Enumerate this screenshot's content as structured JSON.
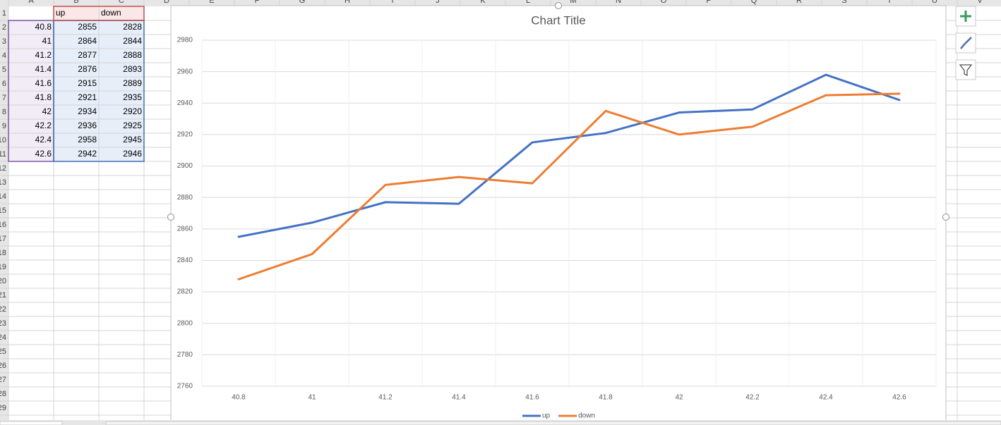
{
  "spreadsheet": {
    "columns": [
      "A",
      "B",
      "C",
      "D",
      "E",
      "F",
      "G",
      "H",
      "I",
      "J",
      "K",
      "L",
      "M",
      "N",
      "O",
      "P",
      "Q",
      "R",
      "S",
      "T",
      "U",
      "V"
    ],
    "row_numbers": [
      1,
      2,
      3,
      4,
      5,
      6,
      7,
      8,
      9,
      10,
      11,
      12,
      13,
      14,
      15,
      16,
      17,
      18,
      19,
      20,
      21,
      22,
      23,
      24,
      25,
      26,
      27,
      28,
      29
    ],
    "header": [
      "up",
      "down"
    ],
    "table": [
      [
        40.8,
        2855,
        2828
      ],
      [
        41,
        2864,
        2844
      ],
      [
        41.2,
        2877,
        2888
      ],
      [
        41.4,
        2876,
        2893
      ],
      [
        41.6,
        2915,
        2889
      ],
      [
        41.8,
        2921,
        2935
      ],
      [
        42,
        2934,
        2920
      ],
      [
        42.2,
        2936,
        2925
      ],
      [
        42.4,
        2958,
        2945
      ],
      [
        42.6,
        2942,
        2946
      ]
    ]
  },
  "chart_data": {
    "type": "line",
    "title": "Chart Title",
    "categories": [
      "40.8",
      "41",
      "41.2",
      "41.4",
      "41.6",
      "41.8",
      "42",
      "42.2",
      "42.4",
      "42.6"
    ],
    "series": [
      {
        "name": "up",
        "color": "#4472c4",
        "values": [
          2855,
          2864,
          2877,
          2876,
          2915,
          2921,
          2934,
          2936,
          2958,
          2942
        ]
      },
      {
        "name": "down",
        "color": "#ed7d31",
        "values": [
          2828,
          2844,
          2888,
          2893,
          2889,
          2935,
          2920,
          2925,
          2945,
          2946
        ]
      }
    ],
    "ylim": [
      2760,
      2980
    ],
    "yticks": [
      2760,
      2780,
      2800,
      2820,
      2840,
      2860,
      2880,
      2900,
      2920,
      2940,
      2960,
      2980
    ],
    "grid": true,
    "legend": "bottom"
  }
}
